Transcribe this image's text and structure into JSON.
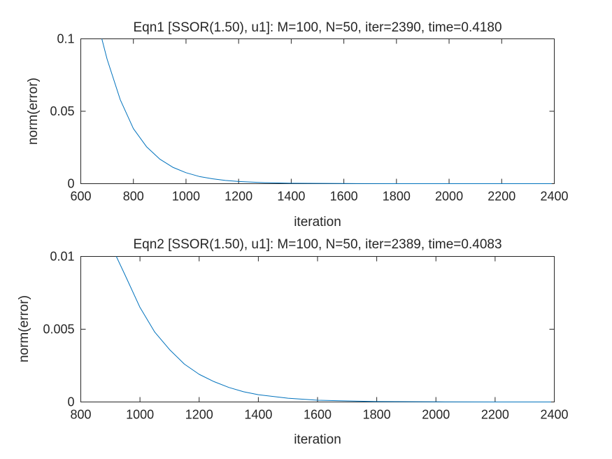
{
  "chart_data": [
    {
      "type": "line",
      "title": "Eqn1 [SSOR(1.50), u1]: M=100, N=50, iter=2390, time=0.4180",
      "xlabel": "iteration",
      "ylabel": "norm(error)",
      "xlim": [
        600,
        2400
      ],
      "ylim": [
        0,
        0.1
      ],
      "xticks": [
        600,
        800,
        1000,
        1200,
        1400,
        1600,
        1800,
        2000,
        2200,
        2400
      ],
      "xtick_labels": [
        "600",
        "800",
        "1000",
        "1200",
        "1400",
        "1600",
        "1800",
        "2000",
        "2200",
        "2400"
      ],
      "yticks": [
        0,
        0.05,
        0.1
      ],
      "ytick_labels": [
        "0",
        "0.05",
        "0.1"
      ],
      "grid": false,
      "color": "#0072BD",
      "series": [
        {
          "x": [
            680,
            700,
            750,
            800,
            850,
            900,
            950,
            1000,
            1050,
            1100,
            1150,
            1200,
            1300,
            1400,
            1600,
            1800,
            2000,
            2200,
            2390
          ],
          "y": [
            0.1,
            0.086,
            0.058,
            0.038,
            0.0255,
            0.017,
            0.0113,
            0.0076,
            0.005,
            0.0034,
            0.0022,
            0.0015,
            0.0007,
            0.0003,
            0.0001,
            2e-05,
            5e-06,
            1e-06,
            0.0
          ]
        }
      ]
    },
    {
      "type": "line",
      "title": "Eqn2 [SSOR(1.50), u1]: M=100, N=50, iter=2389, time=0.4083",
      "xlabel": "iteration",
      "ylabel": "norm(error)",
      "xlim": [
        800,
        2400
      ],
      "ylim": [
        0,
        0.01
      ],
      "xticks": [
        800,
        1000,
        1200,
        1400,
        1600,
        1800,
        2000,
        2200,
        2400
      ],
      "xtick_labels": [
        "800",
        "1000",
        "1200",
        "1400",
        "1600",
        "1800",
        "2000",
        "2200",
        "2400"
      ],
      "yticks": [
        0,
        0.005,
        0.01
      ],
      "ytick_labels": [
        "0",
        "0.005",
        "0.01"
      ],
      "grid": false,
      "color": "#0072BD",
      "series": [
        {
          "x": [
            920,
            950,
            1000,
            1050,
            1100,
            1150,
            1200,
            1250,
            1300,
            1350,
            1400,
            1500,
            1600,
            1800,
            2000,
            2200,
            2389
          ],
          "y": [
            0.01,
            0.0087,
            0.0065,
            0.0048,
            0.0036,
            0.0026,
            0.0019,
            0.0014,
            0.001,
            0.0007,
            0.0005,
            0.00026,
            0.00012,
            3e-05,
            8e-06,
            2e-06,
            0.0
          ]
        }
      ]
    }
  ]
}
